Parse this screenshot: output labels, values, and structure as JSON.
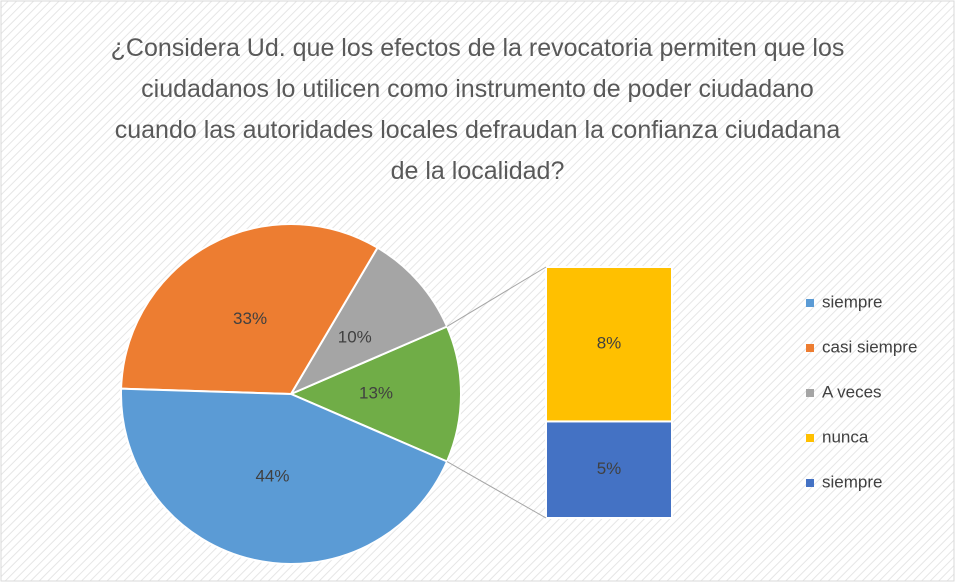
{
  "chart_data": {
    "type": "pie_of_bar",
    "title": "¿Considera Ud. que los efectos de la revocatoria permiten que los ciudadanos lo utilicen como instrumento de poder ciudadano cuando las autoridades locales defraudan la confianza ciudadana de la localidad?",
    "categories": [
      "siempre",
      "casi siempre",
      "A veces",
      "nunca",
      "siempre"
    ],
    "values": [
      44,
      33,
      10,
      8,
      5
    ],
    "value_labels": [
      "44%",
      "33%",
      "10%",
      "8%",
      "5%"
    ],
    "colors": [
      "#5b9bd5",
      "#ed7d31",
      "#a5a5a5",
      "#ffc000",
      "#4472c4"
    ],
    "secondary_from": 3,
    "other_slice": {
      "value": 13,
      "value_label": "13%",
      "color": "#70ad47"
    },
    "legend": "right"
  }
}
